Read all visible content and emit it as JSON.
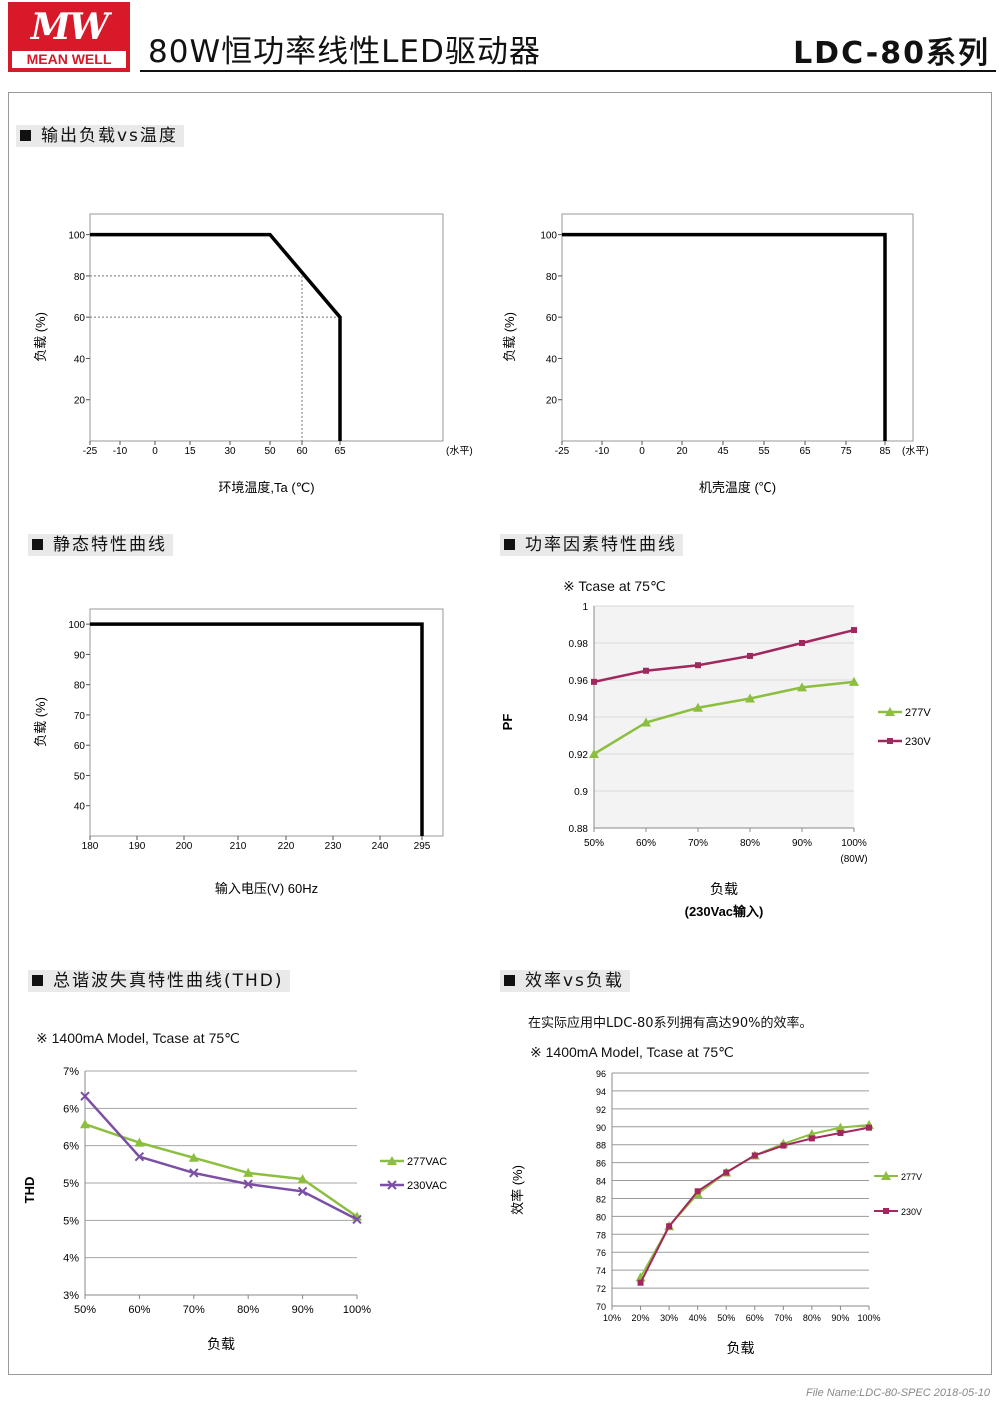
{
  "header": {
    "logo_mark": "MW",
    "logo_text": "MEAN WELL",
    "title": "80W恒功率线性LED驱动器",
    "series": "LDC-80系列"
  },
  "sections": {
    "load_vs_temp": "输出负载vs温度",
    "static": "静态特性曲线",
    "pf": "功率因素特性曲线",
    "thd": "总谐波失真特性曲线(THD)",
    "eff": "效率vs负载"
  },
  "notes": {
    "pf_note": "※ Tcase at 75℃",
    "thd_note": "※ 1400mA Model, Tcase at 75℃",
    "eff_text": "在实际应用中LDC-80系列拥有高达90%的效率。",
    "eff_note": "※ 1400mA Model, Tcase at 75℃"
  },
  "footer": {
    "filename": "File Name:LDC-80-SPEC   2018-05-10"
  },
  "chart_data": [
    {
      "id": "derating_ta",
      "type": "line",
      "ylabel": "负载 (%)",
      "xlabel": "环境温度,Ta (℃)",
      "x_unit_note": "(水平)",
      "x_ticks": [
        "-25",
        "-10",
        "0",
        "15",
        "30",
        "50",
        "60",
        "65"
      ],
      "y_ticks": [
        20,
        40,
        60,
        80,
        100
      ],
      "ylim": [
        0,
        110
      ],
      "series": [
        {
          "points": [
            [
              "-25",
              100
            ],
            [
              "50",
              100
            ],
            [
              "65",
              60
            ],
            [
              "65",
              0
            ]
          ]
        }
      ],
      "guides": [
        [
          "60",
          80
        ],
        [
          "65",
          60
        ]
      ]
    },
    {
      "id": "derating_tcase",
      "type": "line",
      "ylabel": "负载 (%)",
      "xlabel": "机壳温度 (℃)",
      "x_unit_note": "(水平)",
      "x_ticks": [
        "-25",
        "-10",
        "0",
        "20",
        "45",
        "55",
        "65",
        "75",
        "85"
      ],
      "y_ticks": [
        20,
        40,
        60,
        80,
        100
      ],
      "ylim": [
        0,
        110
      ],
      "series": [
        {
          "points": [
            [
              "-25",
              100
            ],
            [
              "85",
              100
            ],
            [
              "85",
              0
            ]
          ]
        }
      ]
    },
    {
      "id": "static",
      "type": "line",
      "ylabel": "负载 (%)",
      "xlabel": "输入电压(V) 60Hz",
      "x_ticks": [
        "180",
        "190",
        "200",
        "210",
        "220",
        "230",
        "240",
        "295"
      ],
      "y_ticks": [
        40,
        50,
        60,
        70,
        80,
        90,
        100
      ],
      "ylim": [
        30,
        105
      ],
      "series": [
        {
          "points": [
            [
              "180",
              100
            ],
            [
              "295",
              100
            ],
            [
              "295",
              30
            ]
          ]
        }
      ]
    },
    {
      "id": "pf",
      "type": "line",
      "ylabel": "PF",
      "xlabel": "负载",
      "xlabel2": "(230Vac输入)",
      "x_extra": "(80W)",
      "x": [
        "50%",
        "60%",
        "70%",
        "80%",
        "90%",
        "100%"
      ],
      "y_ticks": [
        "0.88",
        "0.9",
        "0.92",
        "0.94",
        "0.96",
        "0.98",
        "1"
      ],
      "ylim": [
        0.88,
        1.0
      ],
      "series": [
        {
          "name": "277V",
          "color": "#8cbf3f",
          "marker": "triangle",
          "values": [
            0.92,
            0.937,
            0.945,
            0.95,
            0.956,
            0.959
          ]
        },
        {
          "name": "230V",
          "color": "#a1275f",
          "marker": "square",
          "values": [
            0.959,
            0.965,
            0.968,
            0.973,
            0.98,
            0.987
          ]
        }
      ]
    },
    {
      "id": "thd",
      "type": "line",
      "ylabel": "THD",
      "xlabel": "负载",
      "x": [
        "50%",
        "60%",
        "70%",
        "80%",
        "90%",
        "100%"
      ],
      "y_ticks": [
        "3%",
        "4%",
        "5%",
        "5%",
        "6%",
        "6%",
        "7%"
      ],
      "ylim": [
        3,
        7
      ],
      "series": [
        {
          "name": "277VAC",
          "color": "#8cbf3f",
          "marker": "triangle",
          "values": [
            6.05,
            5.72,
            5.45,
            5.18,
            5.07,
            4.4
          ]
        },
        {
          "name": "230VAC",
          "color": "#7b4fa5",
          "marker": "x",
          "values": [
            6.55,
            5.47,
            5.18,
            4.98,
            4.85,
            4.35
          ]
        }
      ]
    },
    {
      "id": "efficiency",
      "type": "line",
      "ylabel": "效率 (%)",
      "xlabel": "负载",
      "x": [
        "10%",
        "20%",
        "30%",
        "40%",
        "50%",
        "60%",
        "70%",
        "80%",
        "90%",
        "100%"
      ],
      "y_ticks": [
        70,
        72,
        74,
        76,
        78,
        80,
        82,
        84,
        86,
        88,
        90,
        92,
        94,
        96
      ],
      "ylim": [
        70,
        96
      ],
      "series": [
        {
          "name": "277V",
          "color": "#8cbf3f",
          "marker": "triangle",
          "values": [
            null,
            73.2,
            78.9,
            82.5,
            84.9,
            86.8,
            88.1,
            89.2,
            89.9,
            90.2
          ]
        },
        {
          "name": "230V",
          "color": "#a1275f",
          "marker": "square",
          "values": [
            null,
            72.6,
            78.9,
            82.8,
            84.9,
            86.8,
            87.9,
            88.7,
            89.3,
            89.9
          ]
        }
      ]
    }
  ]
}
